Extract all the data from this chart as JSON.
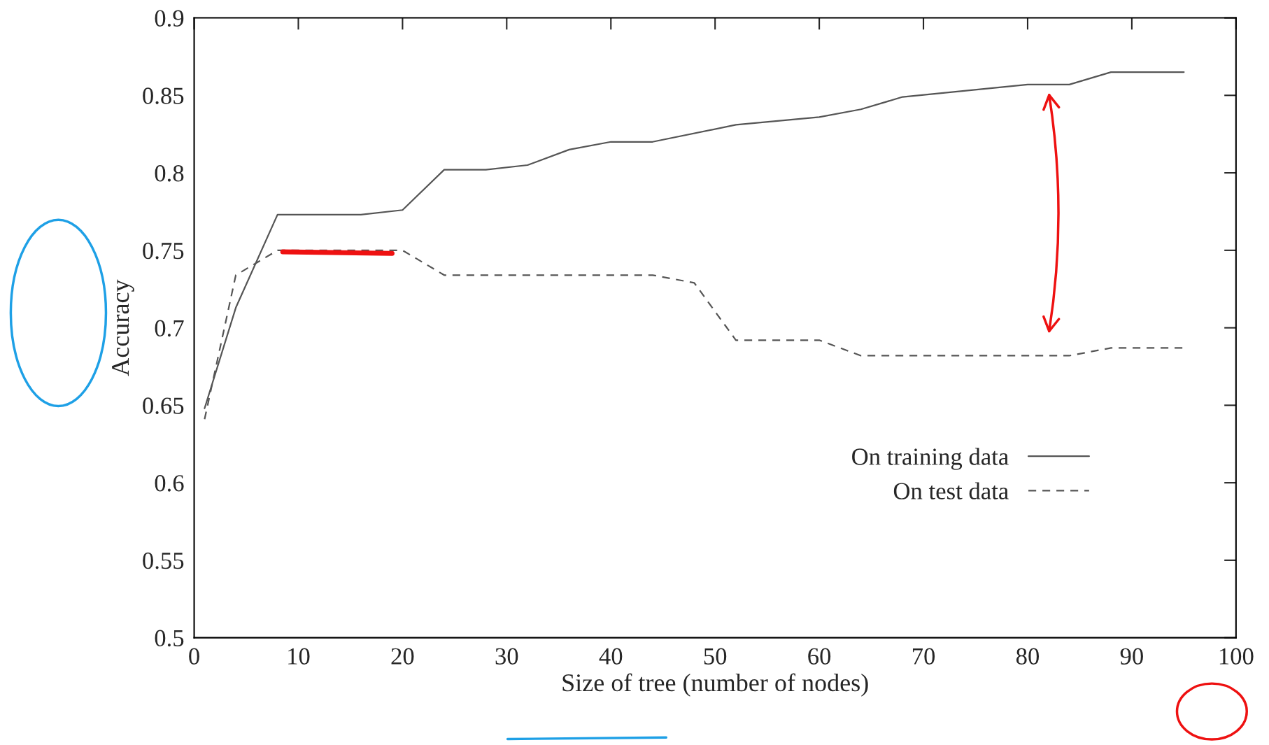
{
  "chart_data": {
    "type": "line",
    "xlabel": "Size of tree (number of nodes)",
    "ylabel": "Accuracy",
    "xlim": [
      0,
      100
    ],
    "xticks": [
      0,
      10,
      20,
      30,
      40,
      50,
      60,
      70,
      80,
      90,
      100
    ],
    "ylim": [
      0.5,
      0.9
    ],
    "yticks": [
      0.5,
      0.55,
      0.6,
      0.65,
      0.7,
      0.75,
      0.8,
      0.85,
      0.9
    ],
    "grid": false,
    "legend": "bottom right",
    "series": [
      {
        "name": "On training data",
        "color": "#555555",
        "line_style": "solid",
        "x": [
          1,
          4,
          8,
          16,
          20,
          24,
          28,
          32,
          36,
          40,
          44,
          52,
          60,
          64,
          68,
          80,
          84,
          88,
          95
        ],
        "values": [
          0.648,
          0.713,
          0.773,
          0.773,
          0.776,
          0.802,
          0.802,
          0.805,
          0.815,
          0.82,
          0.82,
          0.831,
          0.836,
          0.841,
          0.849,
          0.857,
          0.857,
          0.865,
          0.865
        ]
      },
      {
        "name": "On test data",
        "color": "#555555",
        "line_style": "dashed",
        "x": [
          1,
          4,
          8,
          20,
          24,
          44,
          48,
          52,
          60,
          64,
          84,
          88,
          95
        ],
        "values": [
          0.641,
          0.734,
          0.75,
          0.75,
          0.734,
          0.734,
          0.729,
          0.692,
          0.692,
          0.682,
          0.682,
          0.687,
          0.687
        ]
      }
    ]
  }
}
